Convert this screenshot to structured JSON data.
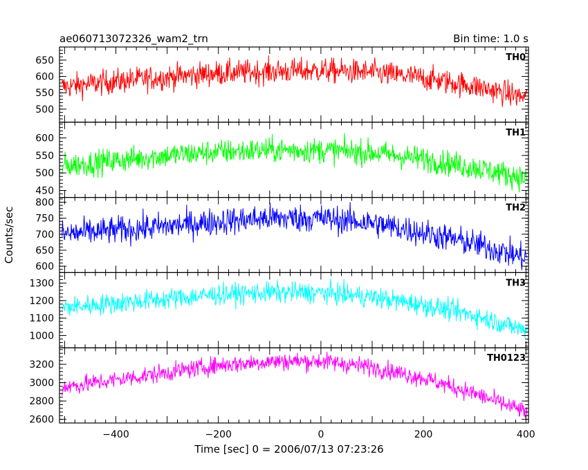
{
  "header": {
    "left": "ae060713072326_wam2_trn",
    "right": "Bin time: 1.0 s"
  },
  "chart_data": {
    "type": "line",
    "xlabel": "Time [sec] 0 = 2006/07/13 07:23:26",
    "ylabel": "Counts/sec",
    "xlim": [
      -510,
      405
    ],
    "x_ticks": [
      -400,
      -200,
      0,
      200,
      400
    ],
    "grid": false,
    "panels": [
      {
        "name": "TH0",
        "color": "#ff0000",
        "ylim": [
          460,
          690
        ],
        "y_ticks": [
          500,
          550,
          600,
          650
        ],
        "trend": {
          "x": [
            -505,
            -400,
            -300,
            -200,
            -100,
            0,
            100,
            200,
            300,
            400
          ],
          "y": [
            568,
            585,
            598,
            610,
            615,
            618,
            612,
            595,
            570,
            535
          ]
        },
        "noise": 35
      },
      {
        "name": "TH1",
        "color": "#00ff00",
        "ylim": [
          430,
          645
        ],
        "y_ticks": [
          450,
          500,
          550,
          600
        ],
        "trend": {
          "x": [
            -505,
            -400,
            -300,
            -200,
            -100,
            0,
            100,
            200,
            300,
            400
          ],
          "y": [
            520,
            535,
            550,
            560,
            565,
            565,
            558,
            540,
            515,
            485
          ]
        },
        "noise": 33
      },
      {
        "name": "TH2",
        "color": "#0000ff",
        "ylim": [
          580,
          815
        ],
        "y_ticks": [
          600,
          650,
          700,
          750,
          800
        ],
        "trend": {
          "x": [
            -505,
            -400,
            -300,
            -200,
            -100,
            0,
            100,
            200,
            300,
            400
          ],
          "y": [
            700,
            712,
            725,
            740,
            750,
            750,
            735,
            705,
            670,
            625
          ]
        },
        "noise": 40
      },
      {
        "name": "TH3",
        "color": "#00ffff",
        "ylim": [
          930,
          1360
        ],
        "y_ticks": [
          1000,
          1100,
          1200,
          1300
        ],
        "trend": {
          "x": [
            -505,
            -400,
            -300,
            -200,
            -100,
            0,
            100,
            200,
            300,
            400
          ],
          "y": [
            1160,
            1185,
            1210,
            1235,
            1245,
            1245,
            1220,
            1175,
            1115,
            1030
          ]
        },
        "noise": 55
      },
      {
        "name": "TH0123",
        "color": "#ff00ff",
        "ylim": [
          2560,
          3380
        ],
        "y_ticks": [
          2600,
          2800,
          3000,
          3200
        ],
        "trend": {
          "x": [
            -505,
            -400,
            -300,
            -200,
            -100,
            0,
            100,
            200,
            300,
            400
          ],
          "y": [
            2950,
            3030,
            3110,
            3190,
            3230,
            3235,
            3170,
            3050,
            2880,
            2680
          ]
        },
        "noise": 90
      }
    ]
  }
}
